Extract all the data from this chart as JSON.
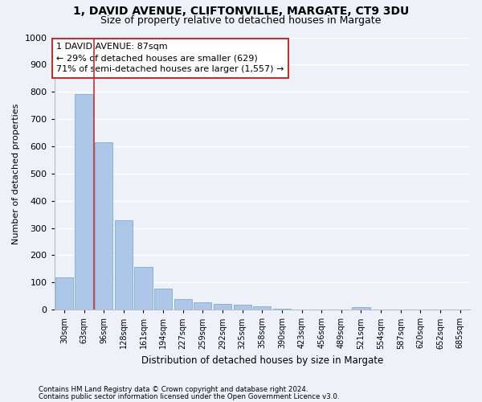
{
  "title1": "1, DAVID AVENUE, CLIFTONVILLE, MARGATE, CT9 3DU",
  "title2": "Size of property relative to detached houses in Margate",
  "xlabel": "Distribution of detached houses by size in Margate",
  "ylabel": "Number of detached properties",
  "categories": [
    "30sqm",
    "63sqm",
    "96sqm",
    "128sqm",
    "161sqm",
    "194sqm",
    "227sqm",
    "259sqm",
    "292sqm",
    "325sqm",
    "358sqm",
    "390sqm",
    "423sqm",
    "456sqm",
    "489sqm",
    "521sqm",
    "554sqm",
    "587sqm",
    "620sqm",
    "652sqm",
    "685sqm"
  ],
  "values": [
    120,
    793,
    615,
    328,
    158,
    78,
    40,
    28,
    22,
    17,
    11,
    2,
    0,
    0,
    0,
    8,
    0,
    0,
    0,
    0,
    0
  ],
  "bar_color": "#aec6e8",
  "bar_edge_color": "#7aadd4",
  "vline_x": 1.5,
  "vline_color": "#bb3333",
  "annotation_text": "1 DAVID AVENUE: 87sqm\n← 29% of detached houses are smaller (629)\n71% of semi-detached houses are larger (1,557) →",
  "annotation_box_color": "#ffffff",
  "annotation_box_edge": "#bb3333",
  "ylim": [
    0,
    1000
  ],
  "yticks": [
    0,
    100,
    200,
    300,
    400,
    500,
    600,
    700,
    800,
    900,
    1000
  ],
  "footnote1": "Contains HM Land Registry data © Crown copyright and database right 2024.",
  "footnote2": "Contains public sector information licensed under the Open Government Licence v3.0.",
  "background_color": "#eef2f8",
  "grid_color": "#ffffff",
  "title_fontsize": 10,
  "subtitle_fontsize": 9
}
